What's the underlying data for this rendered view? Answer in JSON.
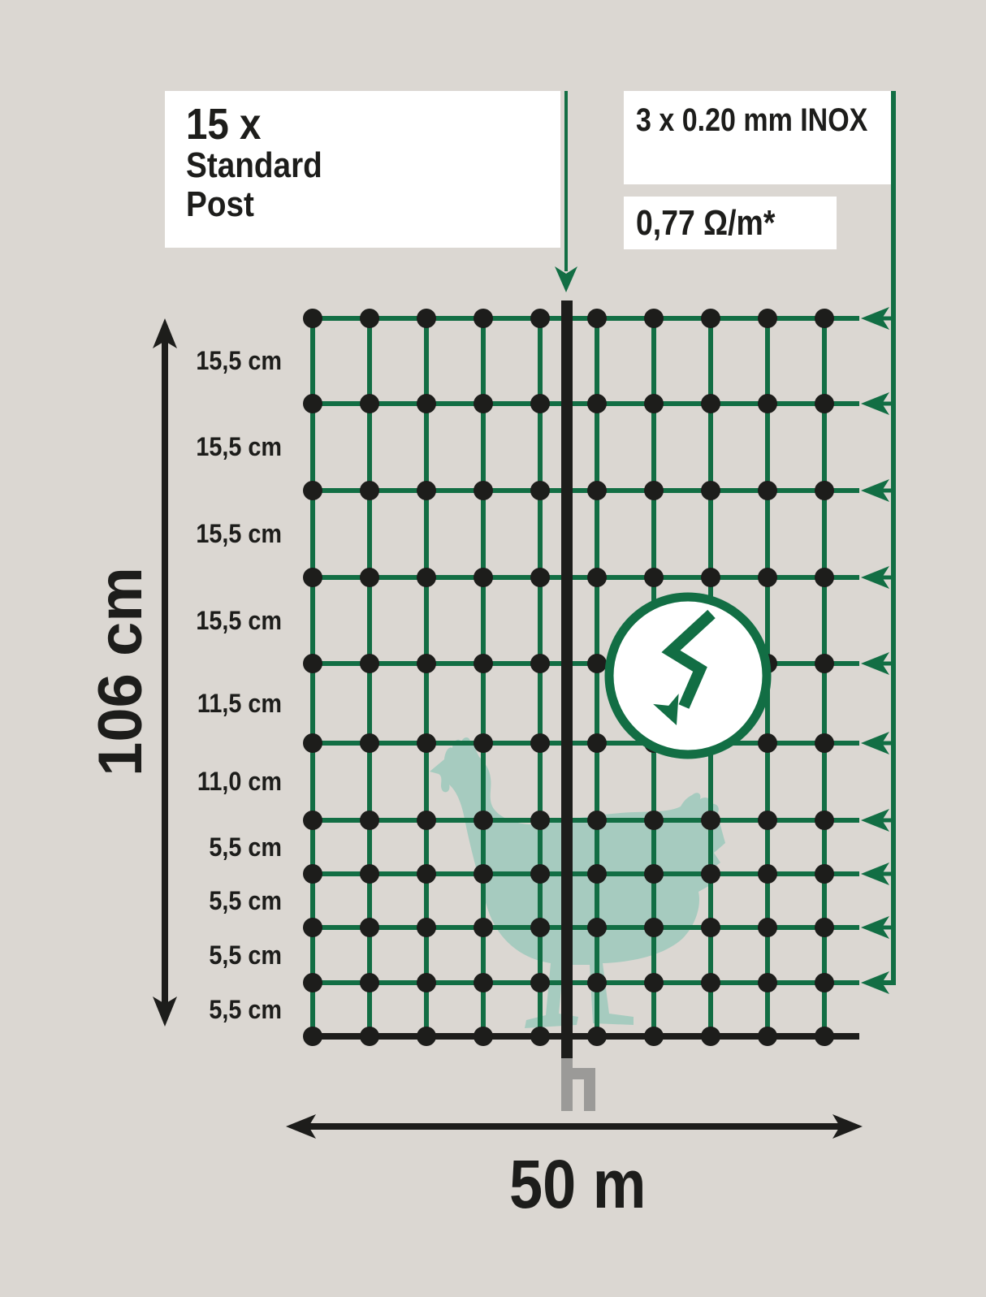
{
  "colors": {
    "background": "#dbd7d2",
    "net_green": "#126e44",
    "ink_black": "#1d1d1b",
    "chicken_green": "#a6cbbf",
    "spike_gray": "#9b9a98",
    "box_white": "#ffffff"
  },
  "boxes": {
    "post": {
      "count": "15 x",
      "name_line1": "Standard",
      "name_line2": "Post"
    },
    "wire": {
      "label": "3 x 0.20 mm INOX"
    },
    "resistance": {
      "label": "0,77 Ω/m*"
    }
  },
  "dimensions": {
    "height": "106 cm",
    "length": "50 m"
  },
  "net": {
    "row_spacings": [
      "15,5 cm",
      "15,5 cm",
      "15,5 cm",
      "15,5 cm",
      "11,5 cm",
      "11,0 cm",
      "5,5 cm",
      "5,5 cm",
      "5,5 cm",
      "5,5 cm"
    ]
  },
  "icons": {
    "high_voltage": "lightning-bolt-arrow-in-circle",
    "post_pointer": "down-arrow",
    "current_feed": "left-arrows",
    "height_dimension": "double-headed-vertical-arrow",
    "length_dimension": "double-headed-horizontal-arrow"
  }
}
